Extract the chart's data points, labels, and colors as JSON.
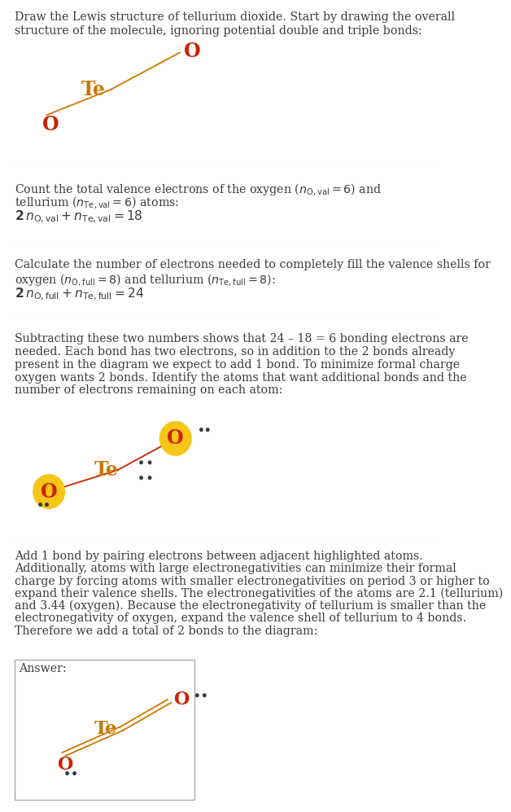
{
  "bg_color": "#ffffff",
  "text_color": "#3a3a3a",
  "atom_color_O": "#cc2200",
  "atom_color_Te": "#cc7700",
  "highlight_color": "#f5c518",
  "bond_color": "#cc7700",
  "bond_color2": "#cc2200",
  "dot_color": "#3a3a3a",
  "sep_color": "#cccccc",
  "section1_lines": [
    "Draw the Lewis structure of tellurium dioxide. Start by drawing the overall",
    "structure of the molecule, ignoring potential double and triple bonds:"
  ],
  "section2_lines": [
    "Count the total valence electrons of the oxygen ($n_{\\mathrm{O,val}} = 6$) and",
    "tellurium ($n_{\\mathrm{Te,val}} = 6$) atoms:"
  ],
  "section2_eq": "$\\mathbf{2}\\, n_{\\mathrm{O,val}} + n_{\\mathrm{Te,val}} = 18$",
  "section3_lines": [
    "Calculate the number of electrons needed to completely fill the valence shells for",
    "oxygen ($n_{\\mathrm{O,full}} = 8$) and tellurium ($n_{\\mathrm{Te,full}} = 8$):"
  ],
  "section3_eq": "$\\mathbf{2}\\, n_{\\mathrm{O,full}} + n_{\\mathrm{Te,full}} = 24$",
  "section4_lines": [
    "Subtracting these two numbers shows that 24 – 18 = 6 bonding electrons are",
    "needed. Each bond has two electrons, so in addition to the 2 bonds already",
    "present in the diagram we expect to add 1 bond. To minimize formal charge",
    "oxygen wants 2 bonds. Identify the atoms that want additional bonds and the",
    "number of electrons remaining on each atom:"
  ],
  "section5_lines": [
    "Add 1 bond by pairing electrons between adjacent highlighted atoms.",
    "Additionally, atoms with large electronegativities can minimize their formal",
    "charge by forcing atoms with smaller electronegativities on period 3 or higher to",
    "expand their valence shells. The electronegativities of the atoms are 2.1 (tellurium)",
    "and 3.44 (oxygen). Because the electronegativity of tellurium is smaller than the",
    "electronegativity of oxygen, expand the valence shell of tellurium to 4 bonds.",
    "Therefore we add a total of 2 bonds to the diagram:"
  ],
  "answer_label": "Answer:"
}
